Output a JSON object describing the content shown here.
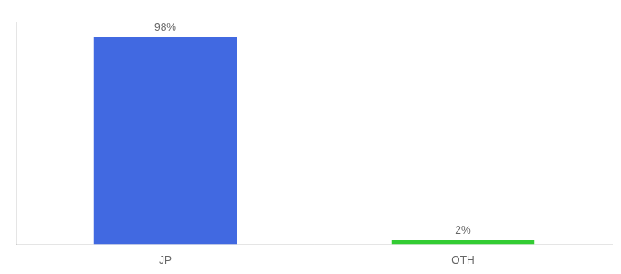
{
  "chart_data": {
    "type": "bar",
    "categories": [
      "JP",
      "OTH"
    ],
    "values": [
      98,
      2
    ],
    "value_labels": [
      "98%",
      "2%"
    ],
    "colors": [
      "#4169E1",
      "#33CC33"
    ],
    "ylim": [
      0,
      105
    ],
    "data_labels": true,
    "tick_labels": "x",
    "grid": false
  }
}
